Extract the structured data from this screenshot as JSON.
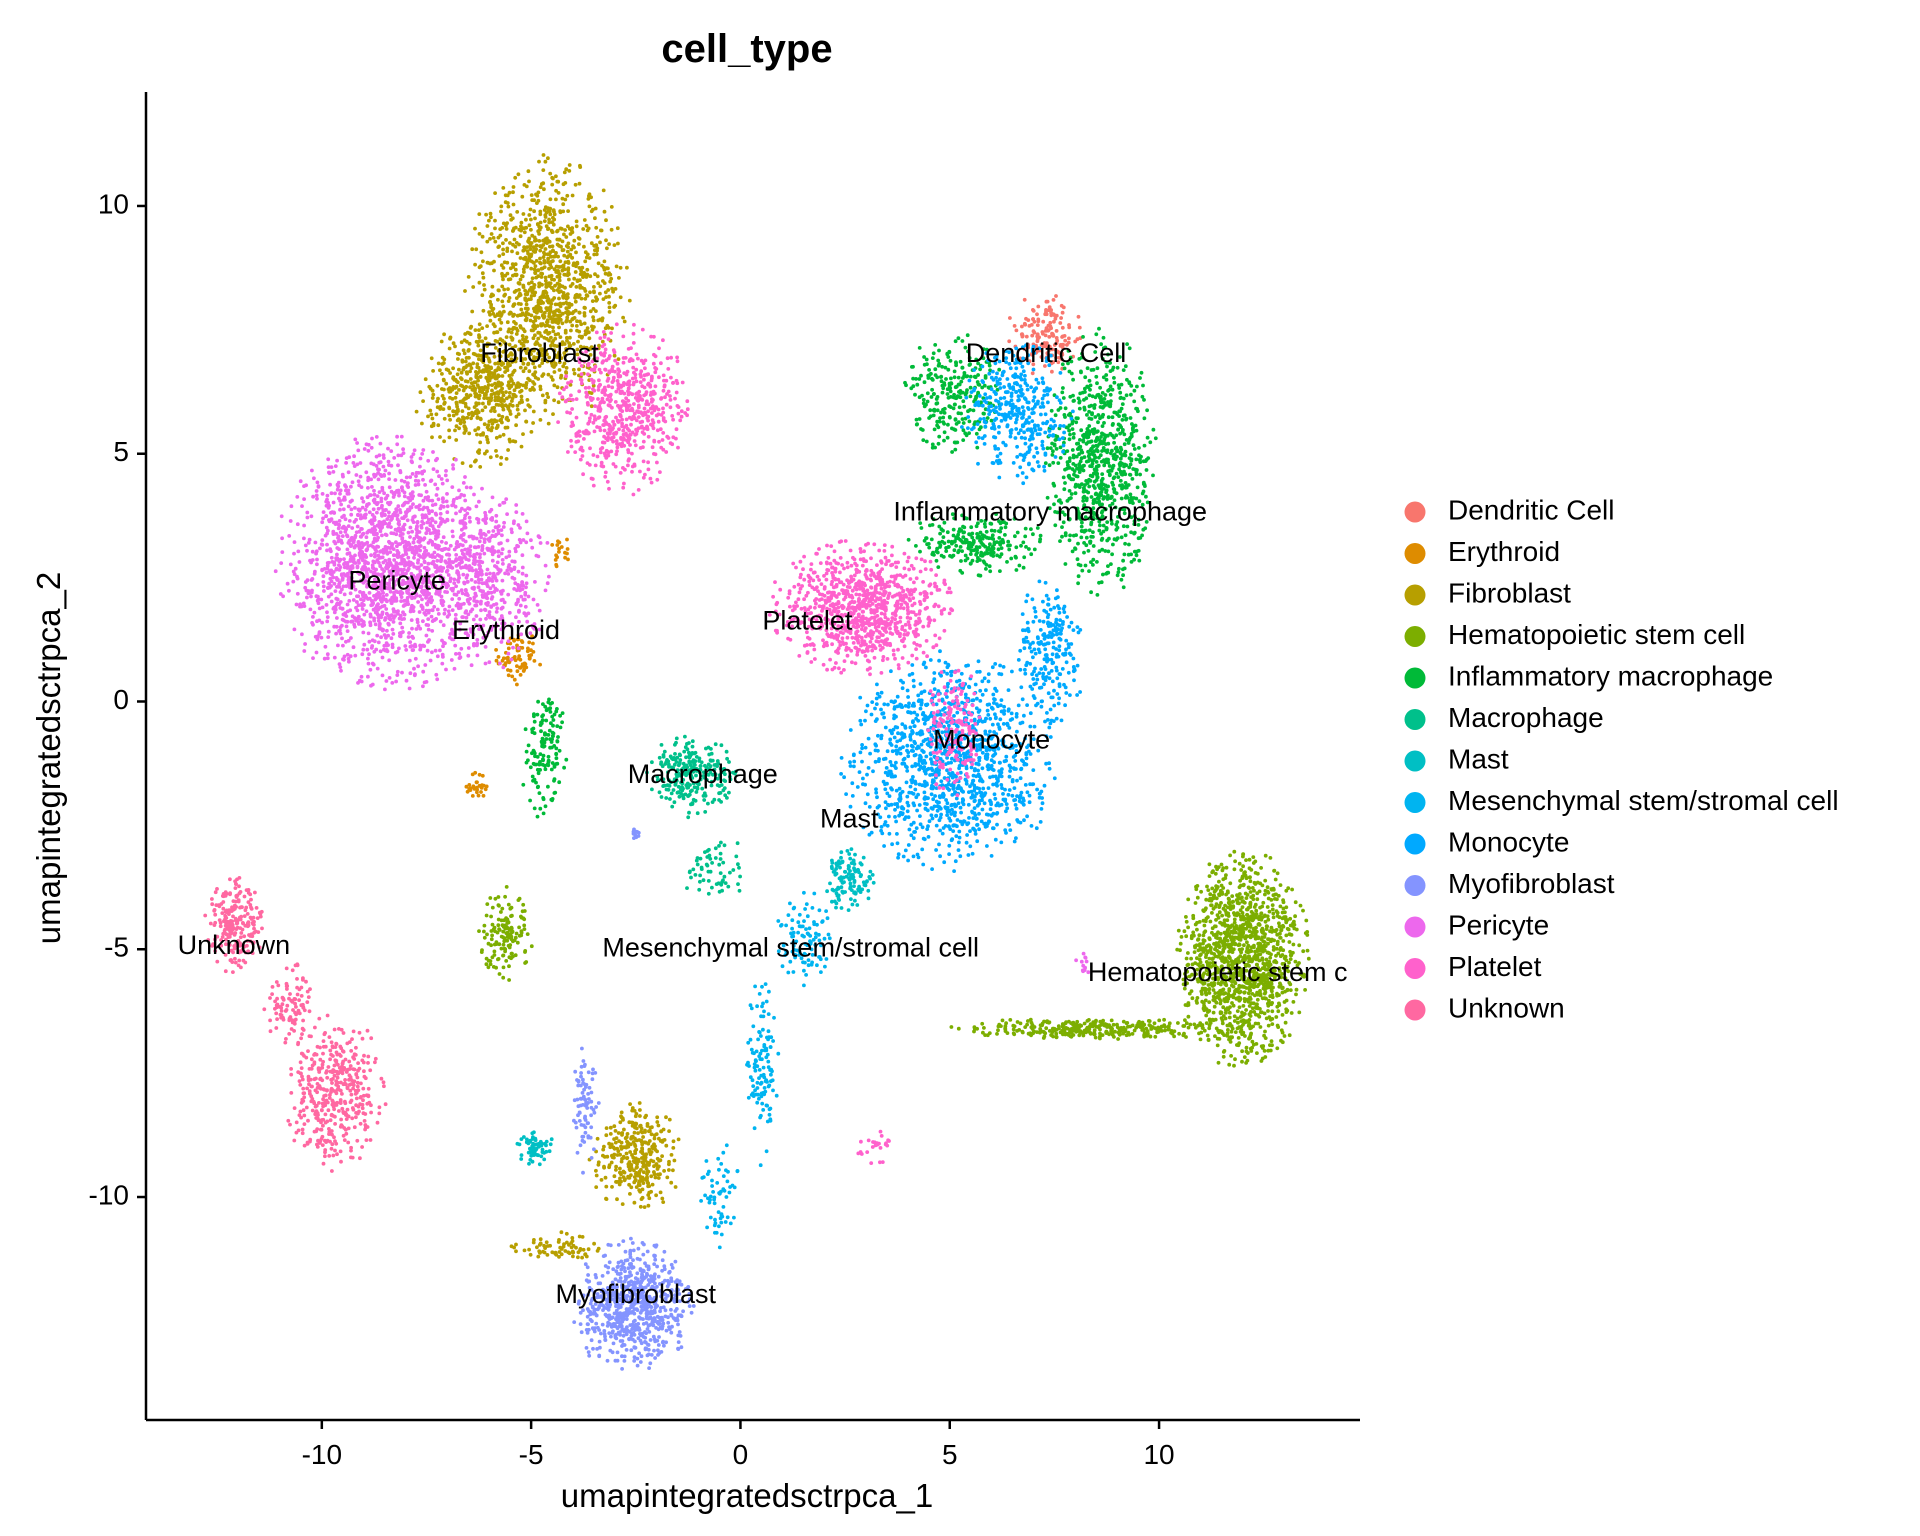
{
  "chart_data": {
    "type": "scatter",
    "title": "cell_type",
    "xlabel": "umapintegratedsctrpca_1",
    "ylabel": "umapintegratedsctrpca_2",
    "xlim": [
      -14.2,
      14.8
    ],
    "ylim": [
      -14.5,
      12.3
    ],
    "xticks": [
      -10,
      -5,
      0,
      5,
      10
    ],
    "yticks": [
      -10,
      -5,
      0,
      5,
      10
    ],
    "grid": false,
    "legend_position": "right",
    "series": [
      {
        "name": "Dendritic Cell",
        "color": "#F8766D",
        "blobs": [
          {
            "cx": 7.3,
            "cy": 7.4,
            "rx": 0.75,
            "ry": 0.7,
            "n": 160
          }
        ]
      },
      {
        "name": "Erythroid",
        "color": "#DE8C00",
        "blobs": [
          {
            "cx": -5.3,
            "cy": 0.9,
            "rx": 0.45,
            "ry": 0.45,
            "n": 70
          },
          {
            "cx": -6.3,
            "cy": -1.7,
            "rx": 0.25,
            "ry": 0.25,
            "n": 30
          },
          {
            "cx": -4.3,
            "cy": 3.0,
            "rx": 0.25,
            "ry": 0.25,
            "n": 18
          }
        ]
      },
      {
        "name": "Fibroblast",
        "color": "#B79F00",
        "blobs": [
          {
            "cx": -4.6,
            "cy": 8.3,
            "rx": 1.6,
            "ry": 2.2,
            "n": 1100
          },
          {
            "cx": -6.2,
            "cy": 6.2,
            "rx": 1.3,
            "ry": 1.2,
            "n": 500
          },
          {
            "cx": -2.5,
            "cy": -9.2,
            "rx": 0.9,
            "ry": 0.9,
            "n": 320
          },
          {
            "cx": -4.3,
            "cy": -11.0,
            "rx": 1.0,
            "ry": 0.25,
            "n": 70
          }
        ]
      },
      {
        "name": "Hematopoietic stem cell",
        "color": "#7CAE00",
        "blobs": [
          {
            "cx": 12.0,
            "cy": -5.2,
            "rx": 1.3,
            "ry": 1.8,
            "n": 1300
          },
          {
            "cx": 8.5,
            "cy": -6.6,
            "rx": 2.8,
            "ry": 0.18,
            "n": 320
          },
          {
            "cx": -5.6,
            "cy": -4.7,
            "rx": 0.6,
            "ry": 0.8,
            "n": 140
          }
        ]
      },
      {
        "name": "Inflammatory macrophage",
        "color": "#00BA38",
        "blobs": [
          {
            "cx": 8.6,
            "cy": 4.8,
            "rx": 1.1,
            "ry": 2.2,
            "n": 800
          },
          {
            "cx": 5.1,
            "cy": 6.2,
            "rx": 1.0,
            "ry": 1.0,
            "n": 260
          },
          {
            "cx": 5.6,
            "cy": 3.2,
            "rx": 1.4,
            "ry": 0.55,
            "n": 240
          },
          {
            "cx": -4.7,
            "cy": -1.0,
            "rx": 0.45,
            "ry": 1.1,
            "n": 140
          }
        ]
      },
      {
        "name": "Macrophage",
        "color": "#00C08B",
        "blobs": [
          {
            "cx": -1.2,
            "cy": -1.5,
            "rx": 0.9,
            "ry": 0.7,
            "n": 260
          },
          {
            "cx": -0.5,
            "cy": -3.4,
            "rx": 0.8,
            "ry": 0.6,
            "n": 60
          }
        ]
      },
      {
        "name": "Mast",
        "color": "#00BFC4",
        "blobs": [
          {
            "cx": 2.6,
            "cy": -3.6,
            "rx": 0.5,
            "ry": 0.6,
            "n": 120
          },
          {
            "cx": -4.9,
            "cy": -9.0,
            "rx": 0.35,
            "ry": 0.3,
            "n": 60
          }
        ]
      },
      {
        "name": "Mesenchymal stem/stromal cell",
        "color": "#00B4F0",
        "blobs": [
          {
            "cx": 1.5,
            "cy": -4.8,
            "rx": 0.6,
            "ry": 0.8,
            "n": 100
          },
          {
            "cx": 0.5,
            "cy": -7.5,
            "rx": 0.35,
            "ry": 1.5,
            "n": 120
          },
          {
            "cx": -0.5,
            "cy": -10.0,
            "rx": 0.4,
            "ry": 0.9,
            "n": 60
          }
        ]
      },
      {
        "name": "Monocyte",
        "color": "#00A9FF",
        "blobs": [
          {
            "cx": 5.0,
            "cy": -1.2,
            "rx": 2.1,
            "ry": 1.8,
            "n": 1200
          },
          {
            "cx": 6.6,
            "cy": 5.8,
            "rx": 1.1,
            "ry": 1.2,
            "n": 360
          },
          {
            "cx": 7.4,
            "cy": 1.0,
            "rx": 0.7,
            "ry": 1.2,
            "n": 220
          }
        ]
      },
      {
        "name": "Myofibroblast",
        "color": "#8494FF",
        "blobs": [
          {
            "cx": -2.6,
            "cy": -12.2,
            "rx": 1.2,
            "ry": 1.1,
            "n": 700
          },
          {
            "cx": -3.7,
            "cy": -8.2,
            "rx": 0.3,
            "ry": 1.1,
            "n": 80
          },
          {
            "cx": -2.5,
            "cy": -2.7,
            "rx": 0.12,
            "ry": 0.12,
            "n": 10
          }
        ]
      },
      {
        "name": "Pericyte",
        "color": "#ED68ED",
        "blobs": [
          {
            "cx": -8.4,
            "cy": 2.8,
            "rx": 2.2,
            "ry": 2.1,
            "n": 1800
          },
          {
            "cx": -6.0,
            "cy": 2.5,
            "rx": 1.2,
            "ry": 1.5,
            "n": 400
          },
          {
            "cx": 8.2,
            "cy": -5.3,
            "rx": 0.2,
            "ry": 0.3,
            "n": 12
          }
        ]
      },
      {
        "name": "Platelet",
        "color": "#FF61CC",
        "blobs": [
          {
            "cx": -2.8,
            "cy": 5.9,
            "rx": 1.3,
            "ry": 1.4,
            "n": 600
          },
          {
            "cx": 2.9,
            "cy": 1.9,
            "rx": 1.8,
            "ry": 1.1,
            "n": 900
          },
          {
            "cx": 5.1,
            "cy": -0.6,
            "rx": 0.6,
            "ry": 1.1,
            "n": 160
          },
          {
            "cx": 3.2,
            "cy": -9.0,
            "rx": 0.35,
            "ry": 0.35,
            "n": 25
          }
        ]
      },
      {
        "name": "Unknown",
        "color": "#FF68A1",
        "blobs": [
          {
            "cx": -12.1,
            "cy": -4.5,
            "rx": 0.6,
            "ry": 0.8,
            "n": 220
          },
          {
            "cx": -9.7,
            "cy": -7.9,
            "rx": 1.0,
            "ry": 1.3,
            "n": 420
          },
          {
            "cx": -10.8,
            "cy": -6.1,
            "rx": 0.5,
            "ry": 0.7,
            "n": 90
          }
        ]
      }
    ],
    "annotations": [
      {
        "text": "Fibroblast",
        "x": -4.8,
        "y": 7.0
      },
      {
        "text": "Dendritic Cell",
        "x": 7.3,
        "y": 7.0
      },
      {
        "text": "Inflammatory macrophage",
        "x": 7.4,
        "y": 3.8
      },
      {
        "text": "Pericyte",
        "x": -8.2,
        "y": 2.4
      },
      {
        "text": "Erythroid",
        "x": -5.6,
        "y": 1.4
      },
      {
        "text": "Platelet",
        "x": 1.6,
        "y": 1.6
      },
      {
        "text": "Monocyte",
        "x": 6.0,
        "y": -0.8
      },
      {
        "text": "Macrophage",
        "x": -0.9,
        "y": -1.5
      },
      {
        "text": "Mast",
        "x": 2.6,
        "y": -2.4
      },
      {
        "text": "Unknown",
        "x": -12.1,
        "y": -4.95
      },
      {
        "text": "Mesenchymal stem/stromal cell",
        "x": 1.2,
        "y": -5.0
      },
      {
        "text": "Hematopoietic stem c",
        "x": 11.4,
        "y": -5.5
      },
      {
        "text": "Myofibroblast",
        "x": -2.5,
        "y": -12.0
      }
    ]
  }
}
